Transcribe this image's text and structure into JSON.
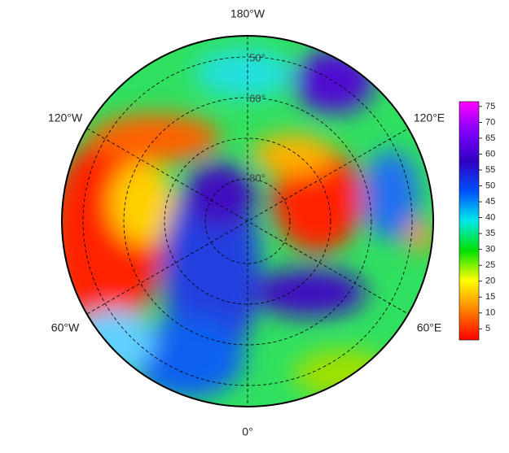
{
  "map": {
    "type": "polar-stereographic",
    "longitude_labels": [
      "180°W",
      "120°W",
      "120°E",
      "60°W",
      "60°E",
      "0°"
    ],
    "latitude_labels": [
      "50°",
      "60°",
      "80°"
    ],
    "colorbar": {
      "lim": [
        1.5,
        76.5
      ],
      "ticks": [
        5,
        10,
        15,
        20,
        25,
        30,
        35,
        40,
        45,
        50,
        55,
        60,
        65,
        70,
        75
      ],
      "colors": [
        "#ff0000",
        "#ff8000",
        "#ffff00",
        "#00e000",
        "#00e8e8",
        "#0050ff",
        "#3000c0",
        "#8000ff",
        "#ff00ff"
      ]
    }
  }
}
